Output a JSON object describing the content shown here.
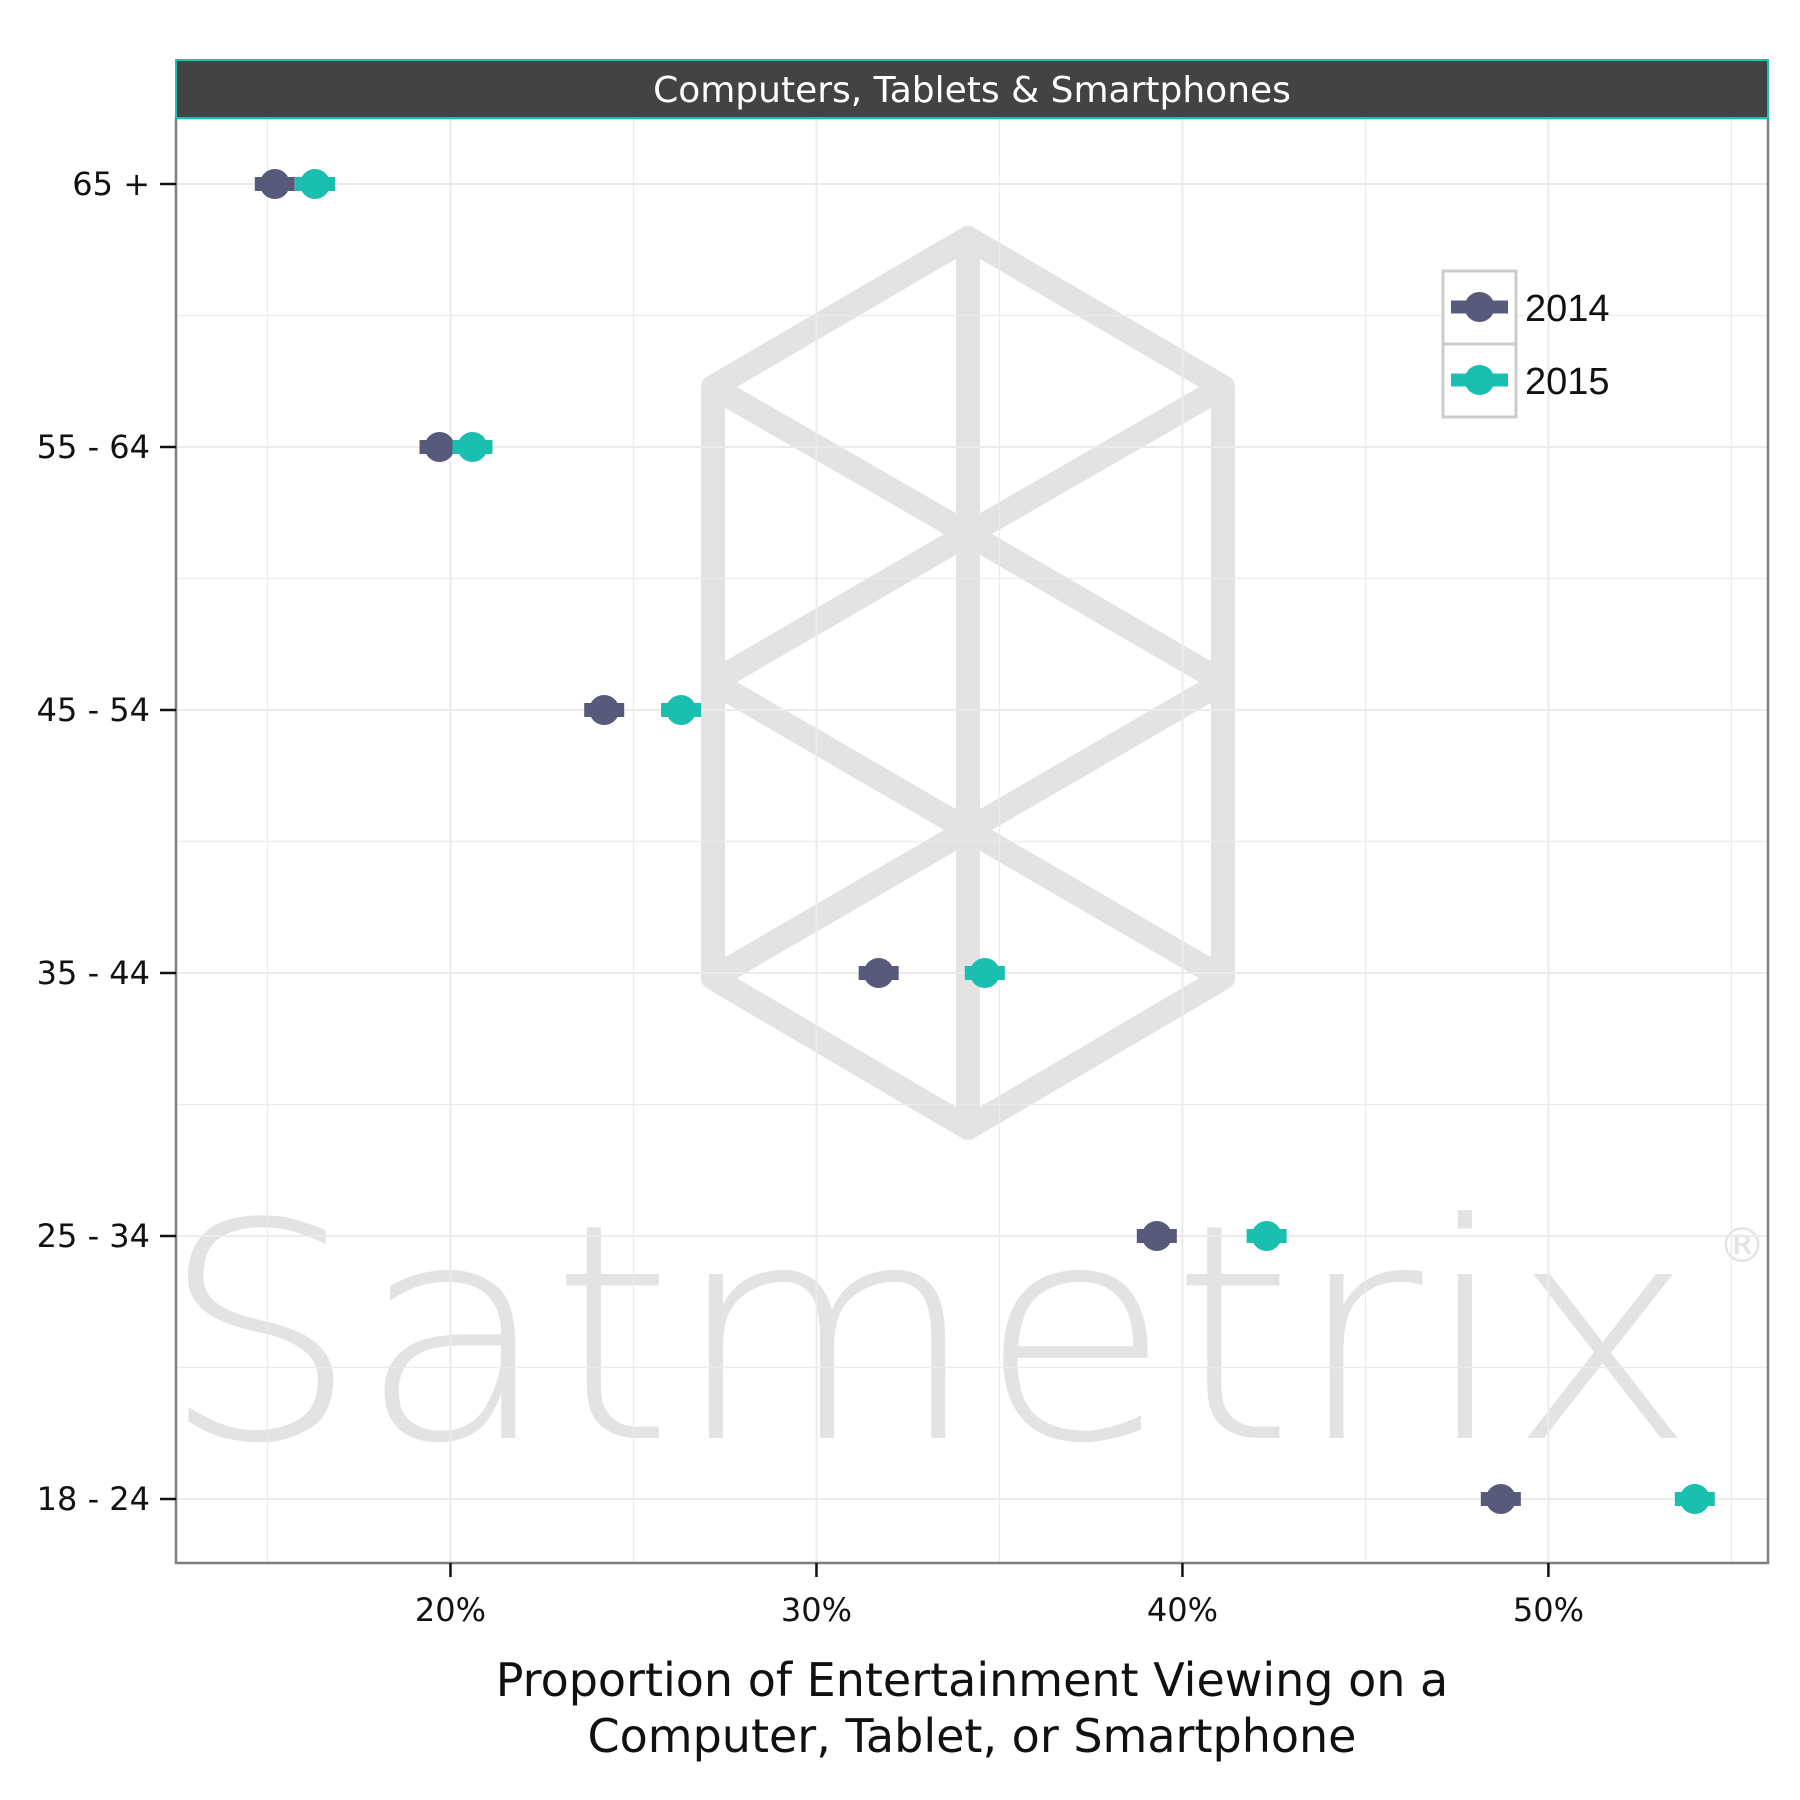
{
  "chart_data": {
    "type": "scatter",
    "facet_title": "Computers, Tablets & Smartphones",
    "xlabel_line1": "Proportion of Entertainment Viewing on a",
    "xlabel_line2": "Computer, Tablet, or Smartphone",
    "ylabel": "",
    "categories": [
      "65 +",
      "55 - 64",
      "45 - 54",
      "35 - 44",
      "25 - 34",
      "18 - 24"
    ],
    "xlim": [
      12.5,
      56
    ],
    "x_ticks": [
      20,
      30,
      40,
      50
    ],
    "x_tick_labels": [
      "20%",
      "30%",
      "40%",
      "50%"
    ],
    "grid": true,
    "legend_position": "top-right",
    "series": [
      {
        "name": "2014",
        "color": "#575a7b",
        "values": [
          15.2,
          19.7,
          24.2,
          31.7,
          39.3,
          48.7
        ]
      },
      {
        "name": "2015",
        "color": "#1abfb0",
        "values": [
          16.3,
          20.6,
          26.3,
          34.6,
          42.3,
          54.0
        ]
      }
    ]
  },
  "watermark": {
    "text": "Satmetrix",
    "mark": "®",
    "icon": "hexagon-cube-logo-icon",
    "color": "#e3e3e3"
  },
  "colors": {
    "strip_bg": "#434343",
    "strip_border": "#1abfb0",
    "panel_border": "#7f7f7f",
    "grid": "#ebebeb"
  }
}
